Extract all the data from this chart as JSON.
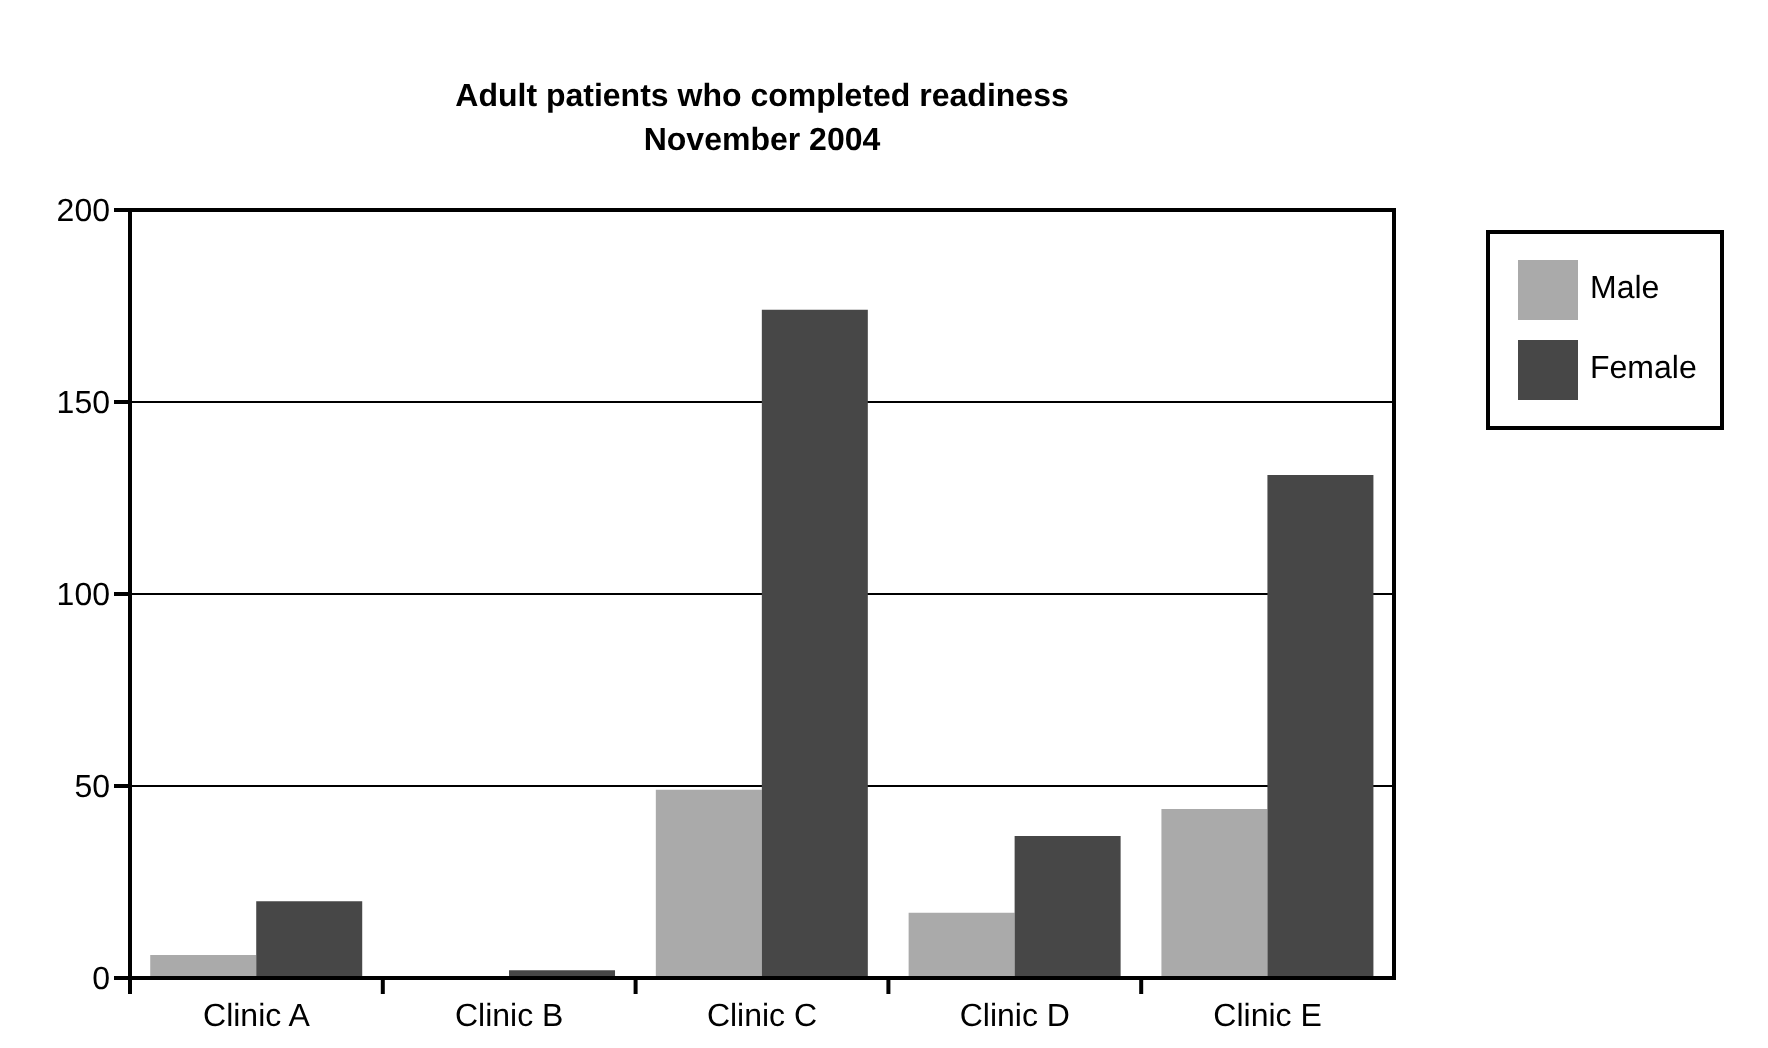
{
  "chart_data": {
    "type": "bar",
    "title": "Adult patients who completed readiness\nNovember 2004",
    "categories": [
      "Clinic A",
      "Clinic B",
      "Clinic C",
      "Clinic D",
      "Clinic E"
    ],
    "series": [
      {
        "name": "Male",
        "color": "#aaaaaa",
        "values": [
          6,
          0,
          49,
          17,
          44
        ]
      },
      {
        "name": "Female",
        "color": "#474747",
        "values": [
          20,
          2,
          174,
          37,
          131
        ]
      }
    ],
    "ylim": [
      0,
      200
    ],
    "yticks": [
      0,
      50,
      100,
      150,
      200
    ],
    "grid": "y",
    "legend": "top right"
  }
}
